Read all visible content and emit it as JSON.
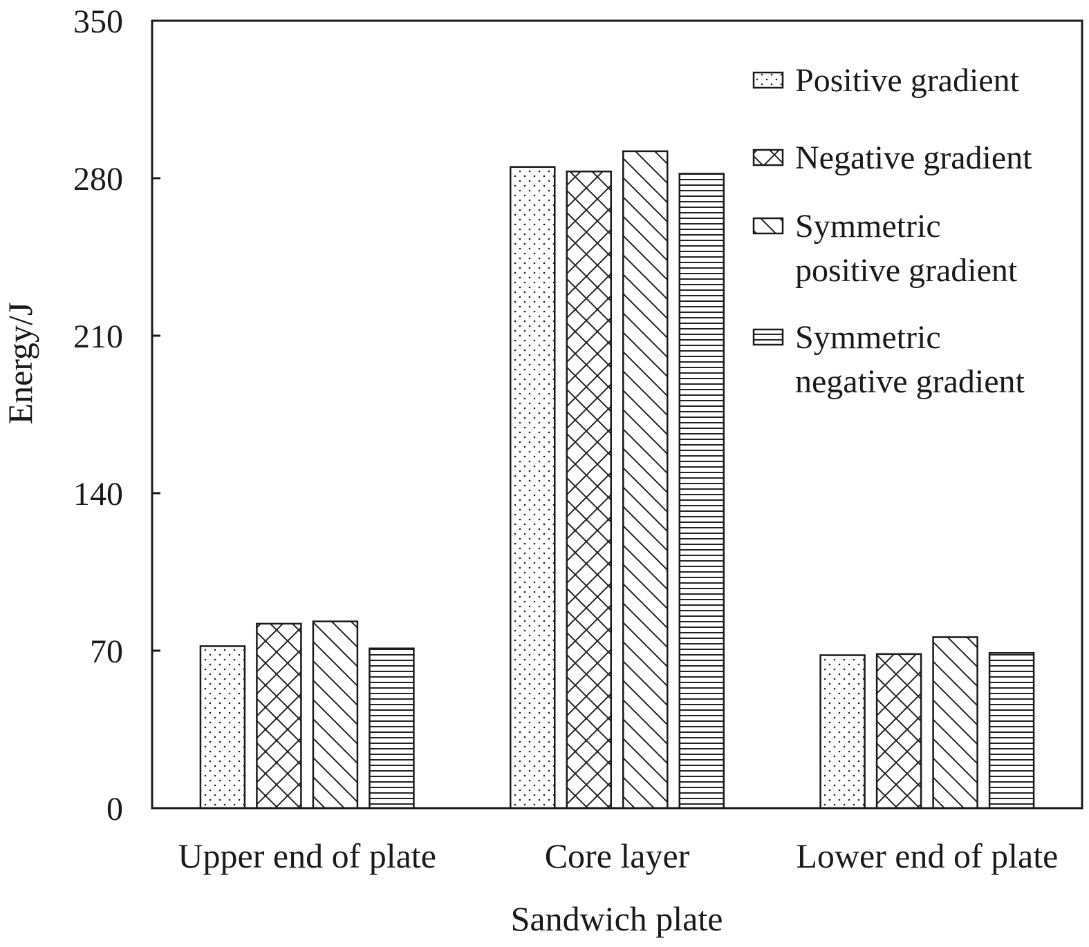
{
  "chart_data": {
    "type": "bar",
    "xlabel": "Sandwich plate",
    "ylabel": "Energy/J",
    "ylim": [
      0,
      350
    ],
    "yticks": [
      0,
      70,
      140,
      210,
      280,
      350
    ],
    "grid": false,
    "legend_position": "top-right",
    "categories": [
      "Upper end of plate",
      "Core layer",
      "Lower end of plate"
    ],
    "series": [
      {
        "name": "Positive gradient",
        "legend_lines": [
          "Positive gradient"
        ],
        "pattern": "dots",
        "values": [
          72,
          285,
          68
        ]
      },
      {
        "name": "Negative gradient",
        "legend_lines": [
          "Negative gradient"
        ],
        "pattern": "crosshatch",
        "values": [
          82,
          283,
          68.5
        ]
      },
      {
        "name": "Symmetric positive gradient",
        "legend_lines": [
          "Symmetric",
          "positive gradient"
        ],
        "pattern": "diagonal",
        "values": [
          83,
          292,
          76
        ]
      },
      {
        "name": "Symmetric negative gradient",
        "legend_lines": [
          "Symmetric",
          "negative gradient"
        ],
        "pattern": "horizontal",
        "values": [
          71,
          282,
          69
        ]
      }
    ]
  }
}
